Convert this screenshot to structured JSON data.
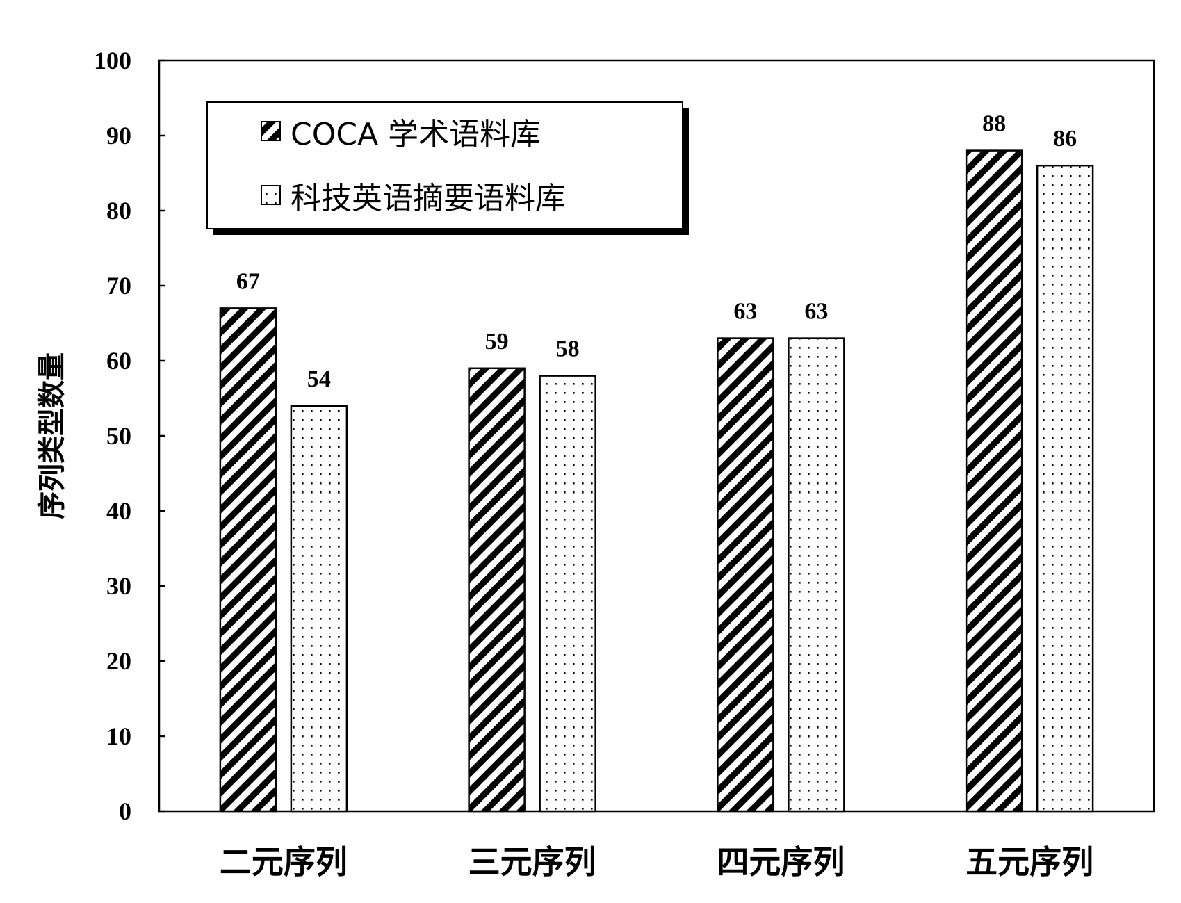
{
  "chart_data": {
    "type": "bar",
    "categories": [
      "二元序列",
      "三元序列",
      "四元序列",
      "五元序列"
    ],
    "series": [
      {
        "name": "COCA 学术语料库",
        "values": [
          67,
          59,
          63,
          88
        ],
        "pattern": "diagonal-hatch"
      },
      {
        "name": "科技英语摘要语料库",
        "values": [
          54,
          58,
          63,
          86
        ],
        "pattern": "dots"
      }
    ],
    "title": "",
    "xlabel": "",
    "ylabel": "序列类型数量",
    "ylim": [
      0,
      100
    ],
    "yticks": [
      0,
      10,
      20,
      30,
      40,
      50,
      60,
      70,
      80,
      90,
      100
    ],
    "grid": false,
    "legend_position": "top-left",
    "data_labels": true,
    "colors": {
      "bar_edge": "#000000",
      "background": "#ffffff"
    }
  }
}
